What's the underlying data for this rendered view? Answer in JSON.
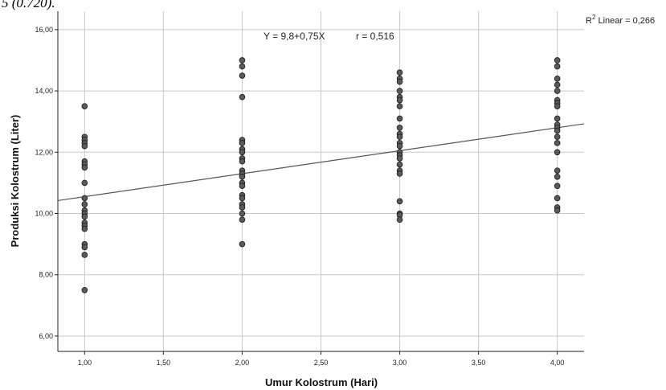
{
  "top_caption": "5 (0.720).",
  "chart_data": {
    "type": "scatter",
    "xlabel": "Umur Kolostrum (Hari)",
    "ylabel": "Produksi Kolostrum (Liter)",
    "xlim": [
      0.83,
      4.17
    ],
    "ylim": [
      5.5,
      16.6
    ],
    "x_ticks": [
      "1,00",
      "1,50",
      "2,00",
      "2,50",
      "3,00",
      "3,50",
      "4,00"
    ],
    "x_tick_values": [
      1.0,
      1.5,
      2.0,
      2.5,
      3.0,
      3.5,
      4.0
    ],
    "y_ticks": [
      "6,00",
      "8,00",
      "10,00",
      "12,00",
      "14,00",
      "16,00"
    ],
    "y_tick_values": [
      6,
      8,
      10,
      12,
      14,
      16
    ],
    "grid": true,
    "equation_text": "Y = 9,8+0,75X",
    "r_text": "r = 0,516",
    "r2_label": "R",
    "r2_sup": "2",
    "r2_text": " Linear = 0,266",
    "fit_line": {
      "intercept": 9.8,
      "slope": 0.75
    },
    "marker_color": "#5a5a5a",
    "line_color": "#555555",
    "points": [
      {
        "x": 1,
        "y": 13.5
      },
      {
        "x": 1,
        "y": 12.5
      },
      {
        "x": 1,
        "y": 12.4
      },
      {
        "x": 1,
        "y": 12.3
      },
      {
        "x": 1,
        "y": 12.2
      },
      {
        "x": 1,
        "y": 11.7
      },
      {
        "x": 1,
        "y": 11.6
      },
      {
        "x": 1,
        "y": 11.5
      },
      {
        "x": 1,
        "y": 11.0
      },
      {
        "x": 1,
        "y": 10.5
      },
      {
        "x": 1,
        "y": 10.3
      },
      {
        "x": 1,
        "y": 10.1
      },
      {
        "x": 1,
        "y": 10.0
      },
      {
        "x": 1,
        "y": 9.9
      },
      {
        "x": 1,
        "y": 9.7
      },
      {
        "x": 1,
        "y": 9.6
      },
      {
        "x": 1,
        "y": 9.5
      },
      {
        "x": 1,
        "y": 9.0
      },
      {
        "x": 1,
        "y": 8.9
      },
      {
        "x": 1,
        "y": 8.65
      },
      {
        "x": 1,
        "y": 7.5
      },
      {
        "x": 2,
        "y": 15.0
      },
      {
        "x": 2,
        "y": 14.8
      },
      {
        "x": 2,
        "y": 14.5
      },
      {
        "x": 2,
        "y": 13.8
      },
      {
        "x": 2,
        "y": 12.4
      },
      {
        "x": 2,
        "y": 12.3
      },
      {
        "x": 2,
        "y": 12.1
      },
      {
        "x": 2,
        "y": 12.0
      },
      {
        "x": 2,
        "y": 11.8
      },
      {
        "x": 2,
        "y": 11.7
      },
      {
        "x": 2,
        "y": 11.4
      },
      {
        "x": 2,
        "y": 11.3
      },
      {
        "x": 2,
        "y": 11.2
      },
      {
        "x": 2,
        "y": 11.0
      },
      {
        "x": 2,
        "y": 10.9
      },
      {
        "x": 2,
        "y": 10.6
      },
      {
        "x": 2,
        "y": 10.5
      },
      {
        "x": 2,
        "y": 10.3
      },
      {
        "x": 2,
        "y": 10.2
      },
      {
        "x": 2,
        "y": 10.0
      },
      {
        "x": 2,
        "y": 9.8
      },
      {
        "x": 2,
        "y": 9.0
      },
      {
        "x": 3,
        "y": 14.6
      },
      {
        "x": 3,
        "y": 14.4
      },
      {
        "x": 3,
        "y": 14.3
      },
      {
        "x": 3,
        "y": 14.0
      },
      {
        "x": 3,
        "y": 13.8
      },
      {
        "x": 3,
        "y": 13.7
      },
      {
        "x": 3,
        "y": 13.5
      },
      {
        "x": 3,
        "y": 13.1
      },
      {
        "x": 3,
        "y": 12.8
      },
      {
        "x": 3,
        "y": 12.6
      },
      {
        "x": 3,
        "y": 12.5
      },
      {
        "x": 3,
        "y": 12.3
      },
      {
        "x": 3,
        "y": 12.2
      },
      {
        "x": 3,
        "y": 12.0
      },
      {
        "x": 3,
        "y": 11.9
      },
      {
        "x": 3,
        "y": 11.8
      },
      {
        "x": 3,
        "y": 11.6
      },
      {
        "x": 3,
        "y": 11.4
      },
      {
        "x": 3,
        "y": 11.3
      },
      {
        "x": 3,
        "y": 10.4
      },
      {
        "x": 3,
        "y": 10.0
      },
      {
        "x": 3,
        "y": 9.95
      },
      {
        "x": 3,
        "y": 9.8
      },
      {
        "x": 4,
        "y": 15.0
      },
      {
        "x": 4,
        "y": 14.8
      },
      {
        "x": 4,
        "y": 14.4
      },
      {
        "x": 4,
        "y": 14.2
      },
      {
        "x": 4,
        "y": 14.0
      },
      {
        "x": 4,
        "y": 13.7
      },
      {
        "x": 4,
        "y": 13.6
      },
      {
        "x": 4,
        "y": 13.5
      },
      {
        "x": 4,
        "y": 13.1
      },
      {
        "x": 4,
        "y": 12.9
      },
      {
        "x": 4,
        "y": 12.8
      },
      {
        "x": 4,
        "y": 12.7
      },
      {
        "x": 4,
        "y": 12.5
      },
      {
        "x": 4,
        "y": 12.3
      },
      {
        "x": 4,
        "y": 12.0
      },
      {
        "x": 4,
        "y": 11.4
      },
      {
        "x": 4,
        "y": 11.2
      },
      {
        "x": 4,
        "y": 10.9
      },
      {
        "x": 4,
        "y": 10.5
      },
      {
        "x": 4,
        "y": 10.2
      },
      {
        "x": 4,
        "y": 10.1
      }
    ]
  }
}
